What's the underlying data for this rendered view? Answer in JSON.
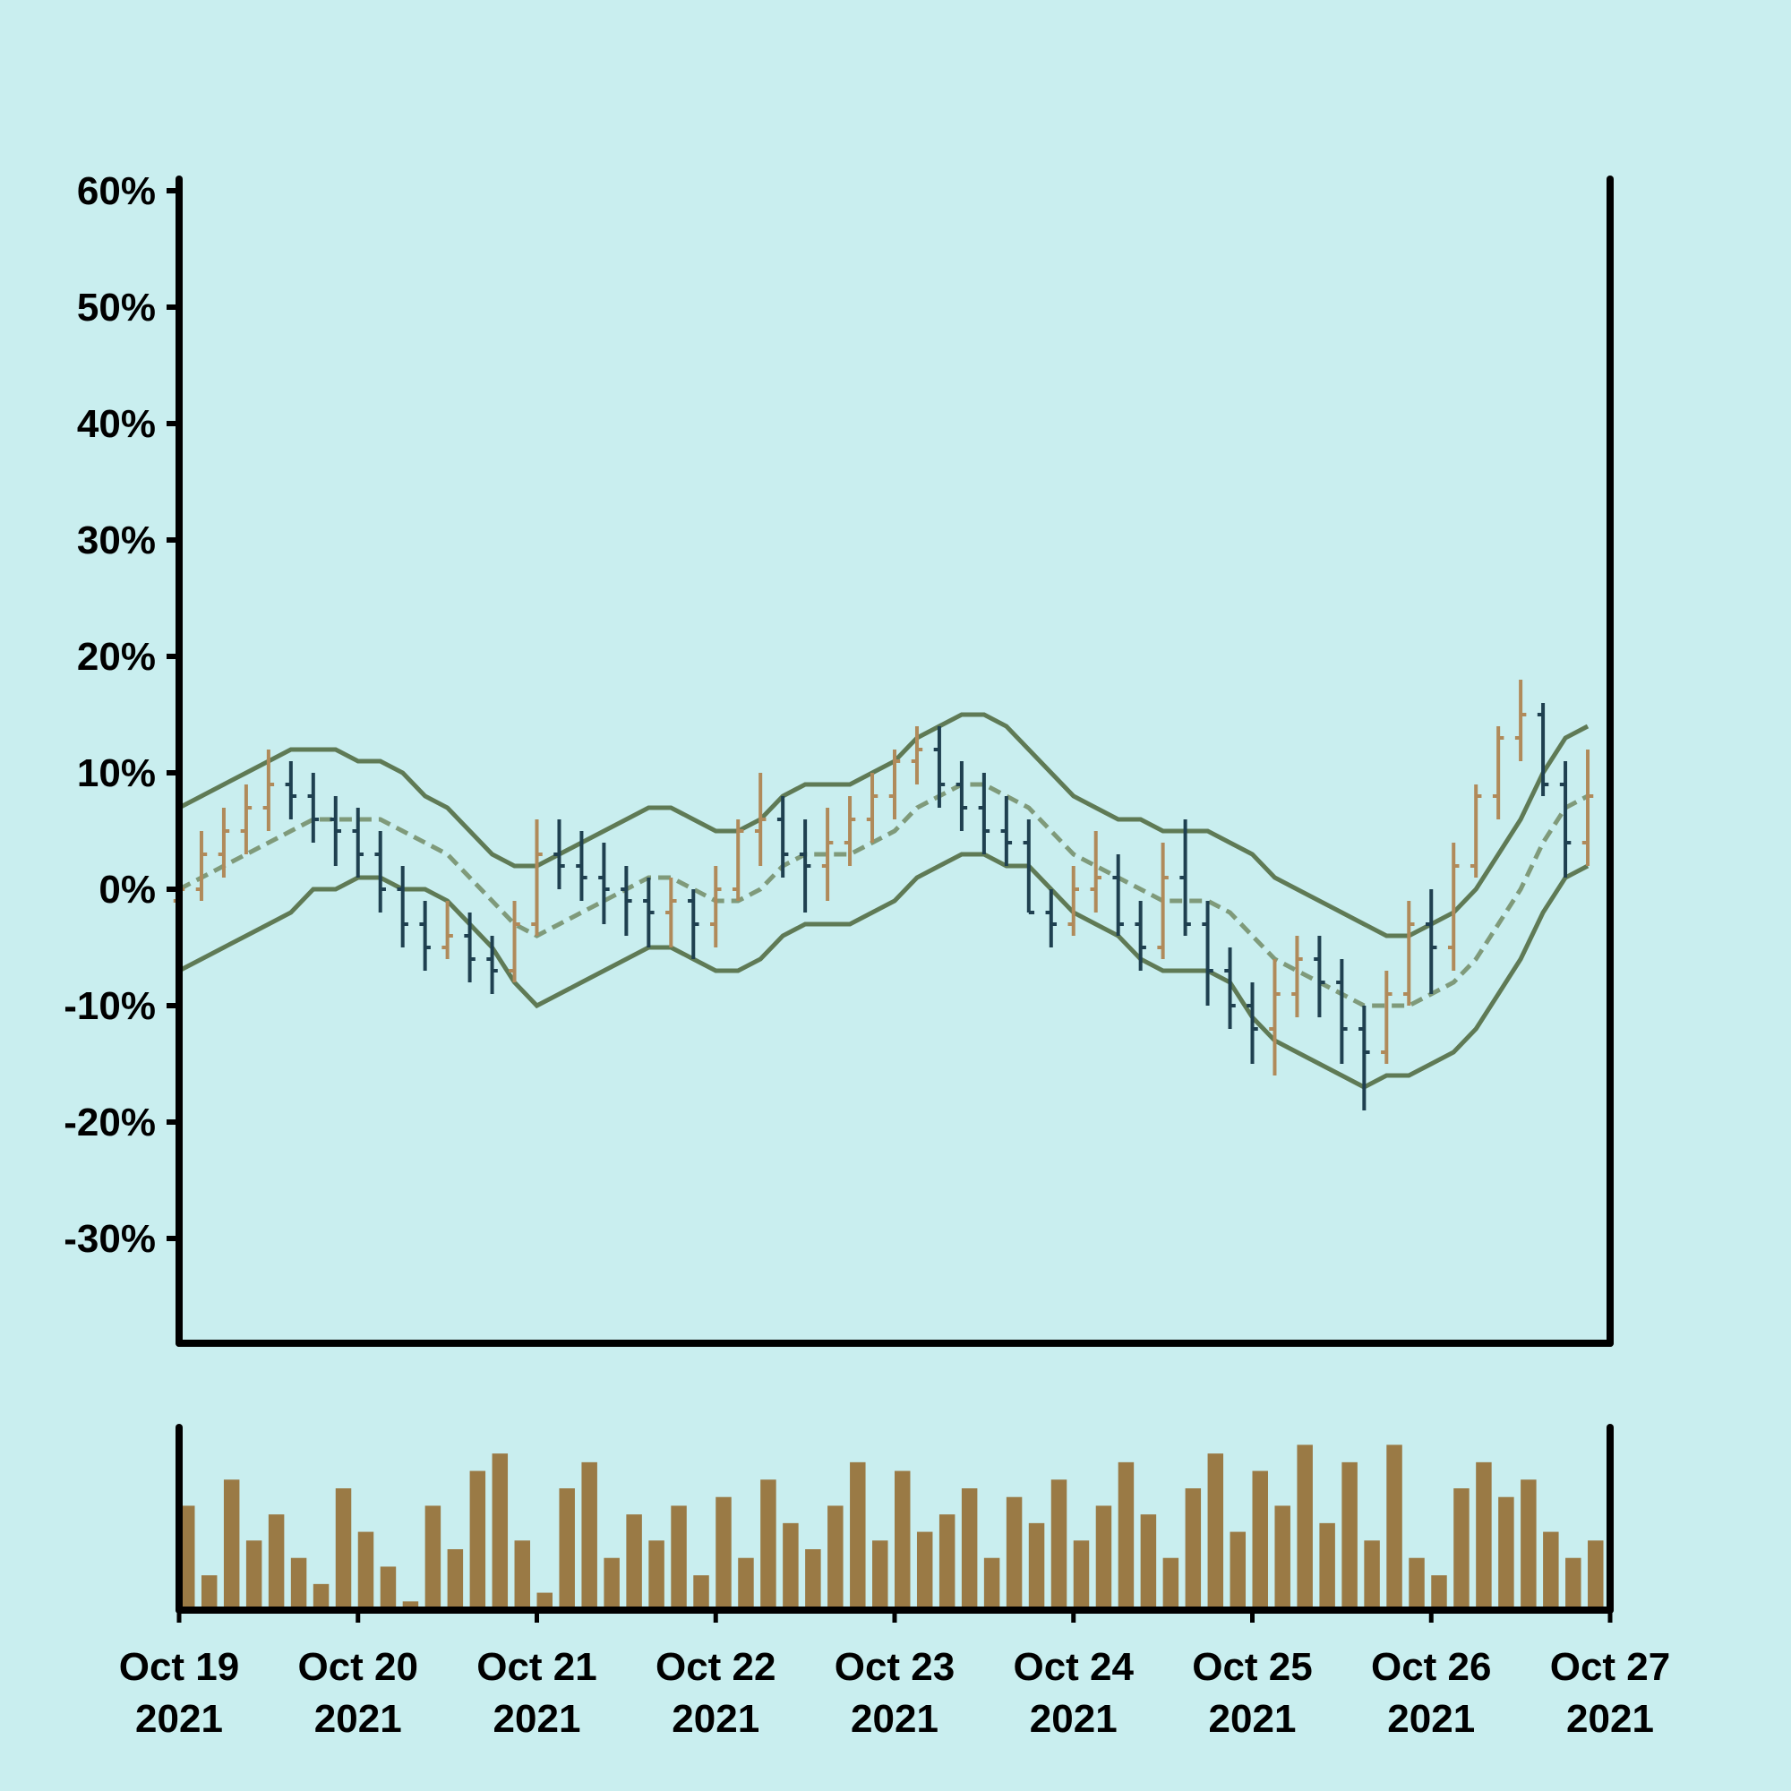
{
  "chart_data": {
    "type": "ohlc",
    "x": [
      "2021-10-19T00:00",
      "2021-10-19T03:00",
      "2021-10-19T06:00",
      "2021-10-19T09:00",
      "2021-10-19T12:00",
      "2021-10-19T15:00",
      "2021-10-19T18:00",
      "2021-10-19T21:00",
      "2021-10-20T00:00",
      "2021-10-20T03:00",
      "2021-10-20T06:00",
      "2021-10-20T09:00",
      "2021-10-20T12:00",
      "2021-10-20T15:00",
      "2021-10-20T18:00",
      "2021-10-20T21:00",
      "2021-10-21T00:00",
      "2021-10-21T03:00",
      "2021-10-21T06:00",
      "2021-10-21T09:00",
      "2021-10-21T12:00",
      "2021-10-21T15:00",
      "2021-10-21T18:00",
      "2021-10-21T21:00",
      "2021-10-22T00:00",
      "2021-10-22T03:00",
      "2021-10-22T06:00",
      "2021-10-22T09:00",
      "2021-10-22T12:00",
      "2021-10-22T15:00",
      "2021-10-22T18:00",
      "2021-10-22T21:00",
      "2021-10-23T00:00",
      "2021-10-23T03:00",
      "2021-10-23T06:00",
      "2021-10-23T09:00",
      "2021-10-23T12:00",
      "2021-10-23T15:00",
      "2021-10-23T18:00",
      "2021-10-23T21:00",
      "2021-10-24T00:00",
      "2021-10-24T03:00",
      "2021-10-24T06:00",
      "2021-10-24T09:00",
      "2021-10-24T12:00",
      "2021-10-24T15:00",
      "2021-10-24T18:00",
      "2021-10-24T21:00",
      "2021-10-25T00:00",
      "2021-10-25T03:00",
      "2021-10-25T06:00",
      "2021-10-25T09:00",
      "2021-10-25T12:00",
      "2021-10-25T15:00",
      "2021-10-25T18:00",
      "2021-10-25T21:00",
      "2021-10-26T00:00",
      "2021-10-26T03:00",
      "2021-10-26T06:00",
      "2021-10-26T09:00",
      "2021-10-26T12:00",
      "2021-10-26T15:00",
      "2021-10-26T18:00",
      "2021-10-26T21:00"
    ],
    "open": [
      -1,
      0,
      3,
      5,
      7,
      9,
      8,
      6,
      5,
      3,
      0,
      -3,
      -5,
      -4,
      -6,
      -7,
      -3,
      3,
      2,
      1,
      0,
      -1,
      -2,
      -1,
      -3,
      0,
      5,
      6,
      3,
      2,
      4,
      6,
      8,
      11,
      12,
      9,
      7,
      5,
      4,
      -2,
      -3,
      0,
      1,
      -3,
      -5,
      1,
      -3,
      -7,
      -10,
      -12,
      -9,
      -6,
      -8,
      -12,
      -14,
      -9,
      -3,
      -5,
      2,
      8,
      13,
      15,
      9,
      4
    ],
    "high": [
      4,
      5,
      7,
      9,
      12,
      11,
      10,
      8,
      7,
      5,
      2,
      -1,
      -1,
      -2,
      -4,
      -1,
      6,
      6,
      5,
      4,
      2,
      1,
      1,
      0,
      2,
      6,
      10,
      8,
      6,
      7,
      8,
      10,
      12,
      14,
      14,
      11,
      10,
      8,
      6,
      0,
      2,
      5,
      3,
      -1,
      4,
      6,
      -1,
      -5,
      -8,
      -6,
      -4,
      -4,
      -6,
      -10,
      -7,
      -1,
      0,
      4,
      9,
      14,
      18,
      16,
      11,
      12
    ],
    "low": [
      -3,
      -1,
      1,
      3,
      5,
      6,
      4,
      2,
      1,
      -2,
      -5,
      -7,
      -6,
      -8,
      -9,
      -8,
      -4,
      0,
      -1,
      -3,
      -4,
      -5,
      -5,
      -6,
      -5,
      -1,
      2,
      1,
      -2,
      -1,
      2,
      4,
      6,
      9,
      7,
      5,
      3,
      2,
      -2,
      -5,
      -4,
      -2,
      -4,
      -7,
      -6,
      -4,
      -10,
      -12,
      -15,
      -16,
      -11,
      -11,
      -15,
      -19,
      -15,
      -10,
      -9,
      -7,
      1,
      6,
      11,
      8,
      1,
      2
    ],
    "close": [
      0,
      3,
      5,
      7,
      9,
      8,
      6,
      5,
      3,
      0,
      -3,
      -5,
      -4,
      -6,
      -7,
      -3,
      3,
      2,
      1,
      0,
      -1,
      -2,
      -1,
      -3,
      0,
      5,
      6,
      3,
      2,
      4,
      6,
      8,
      11,
      12,
      9,
      7,
      5,
      4,
      -2,
      -3,
      0,
      1,
      -3,
      -5,
      1,
      -3,
      -7,
      -10,
      -12,
      -9,
      -6,
      -8,
      -12,
      -14,
      -9,
      -3,
      -5,
      2,
      8,
      13,
      15,
      9,
      4,
      8
    ],
    "bands": {
      "upper": [
        7,
        8,
        9,
        10,
        11,
        12,
        12,
        12,
        11,
        11,
        10,
        8,
        7,
        5,
        3,
        2,
        2,
        3,
        4,
        5,
        6,
        7,
        7,
        6,
        5,
        5,
        6,
        8,
        9,
        9,
        9,
        10,
        11,
        13,
        14,
        15,
        15,
        14,
        12,
        10,
        8,
        7,
        6,
        6,
        5,
        5,
        5,
        4,
        3,
        1,
        0,
        -1,
        -2,
        -3,
        -4,
        -4,
        -3,
        -2,
        0,
        3,
        6,
        10,
        13,
        14
      ],
      "middle": [
        0,
        1,
        2,
        3,
        4,
        5,
        6,
        6,
        6,
        6,
        5,
        4,
        3,
        1,
        -1,
        -3,
        -4,
        -3,
        -2,
        -1,
        0,
        1,
        1,
        0,
        -1,
        -1,
        0,
        2,
        3,
        3,
        3,
        4,
        5,
        7,
        8,
        9,
        9,
        8,
        7,
        5,
        3,
        2,
        1,
        0,
        -1,
        -1,
        -1,
        -2,
        -4,
        -6,
        -7,
        -8,
        -9,
        -10,
        -10,
        -10,
        -9,
        -8,
        -6,
        -3,
        0,
        4,
        7,
        8
      ],
      "lower": [
        -7,
        -6,
        -5,
        -4,
        -3,
        -2,
        0,
        0,
        1,
        1,
        0,
        0,
        -1,
        -3,
        -5,
        -8,
        -10,
        -9,
        -8,
        -7,
        -6,
        -5,
        -5,
        -6,
        -7,
        -7,
        -6,
        -4,
        -3,
        -3,
        -3,
        -2,
        -1,
        1,
        2,
        3,
        3,
        2,
        2,
        0,
        -2,
        -3,
        -4,
        -6,
        -7,
        -7,
        -7,
        -8,
        -11,
        -13,
        -14,
        -15,
        -16,
        -17,
        -16,
        -16,
        -15,
        -14,
        -12,
        -9,
        -6,
        -2,
        1,
        2
      ]
    },
    "volume": [
      60,
      20,
      75,
      40,
      55,
      30,
      15,
      70,
      45,
      25,
      5,
      60,
      35,
      80,
      90,
      40,
      10,
      70,
      85,
      30,
      55,
      40,
      60,
      20,
      65,
      30,
      75,
      50,
      35,
      60,
      85,
      40,
      80,
      45,
      55,
      70,
      30,
      65,
      50,
      75,
      40,
      60,
      85,
      55,
      30,
      70,
      90,
      45,
      80,
      60,
      95,
      50,
      85,
      40,
      95,
      30,
      20,
      70,
      85,
      65,
      75,
      45,
      30,
      40
    ],
    "up_color": "#b08a5a",
    "down_color": "#1f4050",
    "band_color": "#5f7a55",
    "middle_color": "#7f9a7a",
    "volume_color": "#9a7a45",
    "xlim": [
      "2021-10-19T00:00",
      "2021-10-27T00:00"
    ],
    "xticks": [
      {
        "value": "2021-10-19T00:00",
        "label": "Oct 19\n2021"
      },
      {
        "value": "2021-10-20T00:00",
        "label": "Oct 20\n2021"
      },
      {
        "value": "2021-10-21T00:00",
        "label": "Oct 21\n2021"
      },
      {
        "value": "2021-10-22T00:00",
        "label": "Oct 22\n2021"
      },
      {
        "value": "2021-10-23T00:00",
        "label": "Oct 23\n2021"
      },
      {
        "value": "2021-10-24T00:00",
        "label": "Oct 24\n2021"
      },
      {
        "value": "2021-10-25T00:00",
        "label": "Oct 25\n2021"
      },
      {
        "value": "2021-10-26T00:00",
        "label": "Oct 26\n2021"
      },
      {
        "value": "2021-10-27T00:00",
        "label": "Oct 27\n2021"
      }
    ],
    "ylim": [
      -39,
      61
    ],
    "yticks": [
      {
        "value": 60,
        "label": "60%"
      },
      {
        "value": 50,
        "label": "50%"
      },
      {
        "value": 40,
        "label": "40%"
      },
      {
        "value": 30,
        "label": "30%"
      },
      {
        "value": 20,
        "label": "20%"
      },
      {
        "value": 10,
        "label": "10%"
      },
      {
        "value": 0,
        "label": "0%"
      },
      {
        "value": -10,
        "label": "-10%"
      },
      {
        "value": -20,
        "label": "-20%"
      },
      {
        "value": -30,
        "label": "-30%"
      }
    ],
    "volume_ylim": [
      0,
      105
    ]
  }
}
